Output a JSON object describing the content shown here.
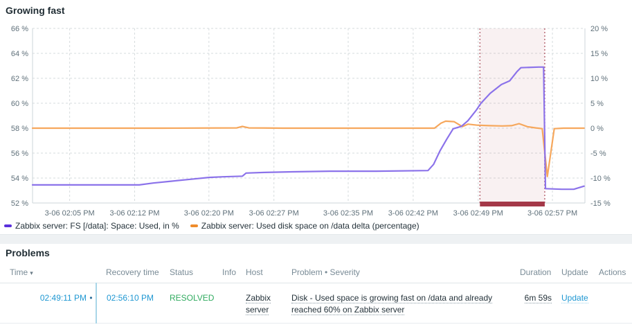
{
  "colors": {
    "link_blue": "#1e97d2",
    "resolved_green": "#30ab5f",
    "purple_marker": "#5a30dc",
    "orange_marker": "#ef8c2c",
    "problem_bar_red": "#a43848"
  },
  "chart": {
    "title": "Growing fast",
    "legend": [
      {
        "label": "Zabbix server: FS [/data]: Space: Used, in %",
        "color": "#5a30dc"
      },
      {
        "label": "Zabbix server: Used disk space on /data delta (percentage)",
        "color": "#ef8c2c"
      }
    ]
  },
  "chart_data": {
    "type": "line",
    "title": "Growing fast",
    "x_unit": "time of day 3-06, minutes after 12:00 noon",
    "x_range": [
      121,
      180.5
    ],
    "x_ticks": [
      {
        "t": 125,
        "label": "3-06 02:05 PM"
      },
      {
        "t": 132,
        "label": "3-06 02:12 PM"
      },
      {
        "t": 140,
        "label": "3-06 02:20 PM"
      },
      {
        "t": 147,
        "label": "3-06 02:27 PM"
      },
      {
        "t": 155,
        "label": "3-06 02:35 PM"
      },
      {
        "t": 162,
        "label": "3-06 02:42 PM"
      },
      {
        "t": 169,
        "label": "3-06 02:49 PM"
      },
      {
        "t": 177,
        "label": "3-06 02:57 PM"
      }
    ],
    "y_left": {
      "range": [
        52,
        66
      ],
      "ticks": [
        {
          "v": 66,
          "label": "66 %"
        },
        {
          "v": 64,
          "label": "64 %"
        },
        {
          "v": 62,
          "label": "62 %"
        },
        {
          "v": 60,
          "label": "60 %"
        },
        {
          "v": 58,
          "label": "58 %"
        },
        {
          "v": 56,
          "label": "56 %"
        },
        {
          "v": 54,
          "label": "54 %"
        },
        {
          "v": 52,
          "label": "52 %"
        }
      ]
    },
    "y_right": {
      "range": [
        -15,
        20
      ],
      "ticks": [
        {
          "v": 20,
          "label": "20 %"
        },
        {
          "v": 15,
          "label": "15 %"
        },
        {
          "v": 10,
          "label": "10 %"
        },
        {
          "v": 5,
          "label": "5 %"
        },
        {
          "v": 0,
          "label": "0 %"
        },
        {
          "v": -5,
          "label": "-5 %"
        },
        {
          "v": -10,
          "label": "-10 %"
        },
        {
          "v": -15,
          "label": "-15 %"
        }
      ]
    },
    "grid": true,
    "legend_position": "bottom",
    "series": [
      {
        "name": "Zabbix server: FS [/data]: Space: Used, in %",
        "axis": "left",
        "color": "#8b72ea",
        "points": [
          [
            121,
            53.45
          ],
          [
            130,
            53.45
          ],
          [
            132.5,
            53.45
          ],
          [
            134,
            53.6
          ],
          [
            136,
            53.75
          ],
          [
            138,
            53.9
          ],
          [
            140,
            54.05
          ],
          [
            141.5,
            54.1
          ],
          [
            143.6,
            54.15
          ],
          [
            144,
            54.4
          ],
          [
            146,
            54.45
          ],
          [
            149,
            54.5
          ],
          [
            153,
            54.55
          ],
          [
            158,
            54.55
          ],
          [
            163.6,
            54.6
          ],
          [
            164.2,
            55.1
          ],
          [
            164.9,
            56.2
          ],
          [
            165.6,
            57.1
          ],
          [
            166.3,
            57.95
          ],
          [
            167.2,
            58.15
          ],
          [
            167.9,
            58.6
          ],
          [
            168.8,
            59.45
          ],
          [
            169.3,
            60.0
          ],
          [
            170.3,
            60.8
          ],
          [
            171.5,
            61.5
          ],
          [
            172.4,
            61.8
          ],
          [
            173.2,
            62.55
          ],
          [
            173.6,
            62.85
          ],
          [
            175.5,
            62.9
          ],
          [
            176.05,
            62.9
          ],
          [
            176.25,
            53.15
          ],
          [
            178,
            53.1
          ],
          [
            179.3,
            53.1
          ],
          [
            180.4,
            53.35
          ]
        ]
      },
      {
        "name": "Zabbix server: Used disk space on /data delta (percentage)",
        "axis": "right",
        "color": "#f6a75c",
        "points": [
          [
            121,
            0
          ],
          [
            135,
            0
          ],
          [
            143,
            0.05
          ],
          [
            143.6,
            0.35
          ],
          [
            144.3,
            0.05
          ],
          [
            148,
            0
          ],
          [
            158,
            0
          ],
          [
            164.3,
            0
          ],
          [
            165.0,
            1.0
          ],
          [
            165.5,
            1.4
          ],
          [
            166.4,
            1.3
          ],
          [
            167.3,
            0.3
          ],
          [
            167.9,
            0.8
          ],
          [
            168.9,
            0.6
          ],
          [
            170.2,
            0.5
          ],
          [
            171.6,
            0.45
          ],
          [
            172.6,
            0.5
          ],
          [
            173.4,
            0.9
          ],
          [
            174.3,
            0.3
          ],
          [
            175.2,
            0.05
          ],
          [
            175.9,
            -0.1
          ],
          [
            176.45,
            -9.7
          ],
          [
            177.2,
            -0.1
          ],
          [
            178.2,
            0
          ],
          [
            180.4,
            0
          ]
        ]
      }
    ],
    "problem_band": {
      "from": 169.19,
      "to": 176.17,
      "fill": "rgba(168,56,74,0.07)",
      "border_color": "#b96a75",
      "bar_color": "#a43848"
    }
  },
  "problems": {
    "title": "Problems",
    "headers": {
      "time": "Time",
      "sort_icon": "▾",
      "recovery": "Recovery time",
      "status": "Status",
      "info": "Info",
      "host": "Host",
      "problem": "Problem • Severity",
      "duration": "Duration",
      "update": "Update",
      "actions": "Actions"
    },
    "rows": [
      {
        "time": "02:49:11 PM",
        "timeline_dot": "•",
        "recovery_time": "02:56:10 PM",
        "status": "RESOLVED",
        "info": "",
        "host": "Zabbix server",
        "problem": "Disk - Used space is growing fast on /data and already reached 60% on Zabbix server",
        "duration": "6m 59s",
        "update": "Update",
        "actions": ""
      }
    ]
  }
}
